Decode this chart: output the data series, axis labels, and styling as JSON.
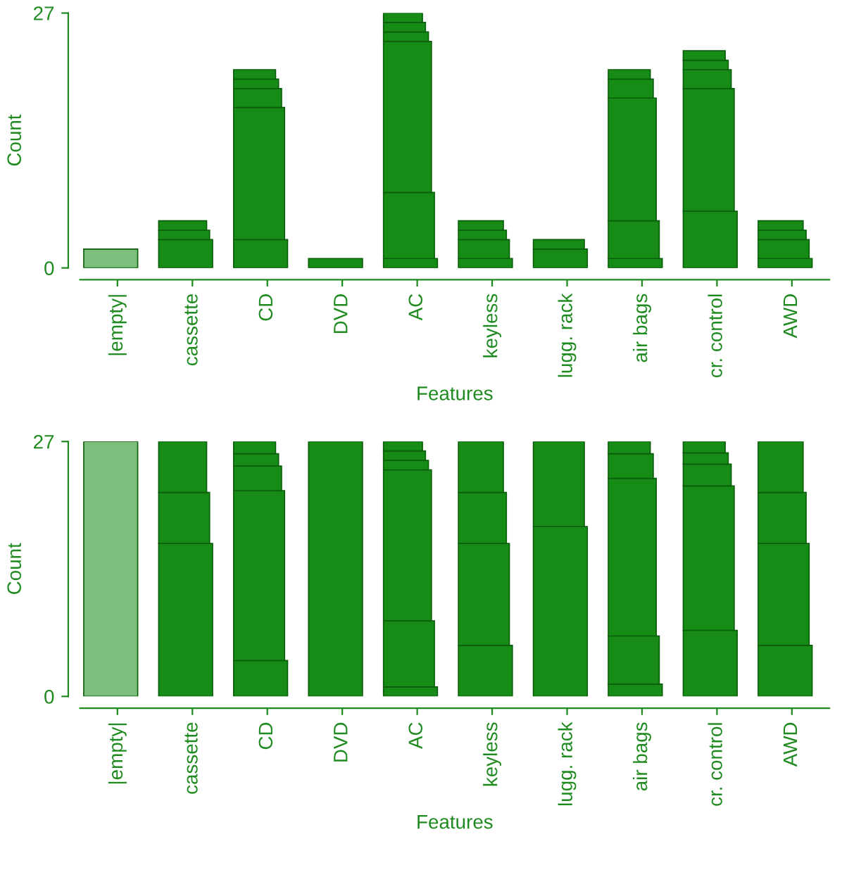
{
  "chart_data": [
    {
      "type": "bar",
      "stacked": true,
      "xlabel": "Features",
      "ylabel": "Count",
      "ylim": [
        0,
        27
      ],
      "yticks": [
        0,
        27
      ],
      "grid": false,
      "categories": [
        "|empty|",
        "cassette",
        "CD",
        "DVD",
        "AC",
        "keyless",
        "lugg. rack",
        "air bags",
        "cr. control",
        "AWD"
      ],
      "series": [
        {
          "colors": [
            "#7cbf7c",
            "#168c16",
            "#168c16",
            "#168c16",
            "#168c16",
            "#168c16",
            "#168c16",
            "#168c16",
            "#168c16",
            "#168c16"
          ],
          "values": [
            2,
            3,
            3,
            1,
            1,
            1,
            2,
            1,
            6,
            1
          ]
        },
        {
          "color": "#168c16",
          "values": [
            null,
            1,
            14,
            null,
            7,
            2,
            1,
            4,
            13,
            2
          ]
        },
        {
          "color": "#168c16",
          "values": [
            null,
            1,
            2,
            null,
            16,
            1,
            null,
            13,
            2,
            1
          ]
        },
        {
          "color": "#168c16",
          "values": [
            null,
            null,
            1,
            null,
            1,
            1,
            null,
            2,
            1,
            1
          ]
        },
        {
          "color": "#168c16",
          "values": [
            null,
            null,
            1,
            null,
            1,
            null,
            null,
            1,
            1,
            null
          ]
        },
        {
          "color": "#168c16",
          "values": [
            null,
            null,
            null,
            null,
            1,
            null,
            null,
            null,
            null,
            null
          ]
        }
      ]
    },
    {
      "type": "bar",
      "stacked": true,
      "xlabel": "Features",
      "ylabel": "Count",
      "ylim": [
        0,
        27
      ],
      "yticks": [
        0,
        27
      ],
      "grid": false,
      "categories": [
        "|empty|",
        "cassette",
        "CD",
        "DVD",
        "AC",
        "keyless",
        "lugg. rack",
        "air bags",
        "cr. control",
        "AWD"
      ],
      "series": [
        {
          "colors": [
            "#7cbf7c",
            "#168c16",
            "#168c16",
            "#168c16",
            "#168c16",
            "#168c16",
            "#168c16",
            "#168c16",
            "#168c16",
            "#168c16"
          ],
          "values": [
            27,
            16.2,
            3.8,
            27,
            1,
            5.4,
            18,
            1.3,
            7,
            5.4
          ]
        },
        {
          "color": "#168c16",
          "values": [
            null,
            5.4,
            18,
            null,
            7,
            10.8,
            9,
            5.1,
            15.3,
            10.8
          ]
        },
        {
          "color": "#168c16",
          "values": [
            null,
            5.4,
            2.6,
            null,
            16,
            5.4,
            null,
            16.7,
            2.3,
            5.4
          ]
        },
        {
          "color": "#168c16",
          "values": [
            null,
            null,
            1.3,
            null,
            1,
            5.4,
            null,
            2.6,
            1.2,
            5.4
          ]
        },
        {
          "color": "#168c16",
          "values": [
            null,
            null,
            1.3,
            null,
            1,
            null,
            null,
            1.3,
            1.2,
            null
          ]
        },
        {
          "color": "#168c16",
          "values": [
            null,
            null,
            null,
            null,
            1,
            null,
            null,
            null,
            null,
            null
          ]
        }
      ]
    }
  ]
}
